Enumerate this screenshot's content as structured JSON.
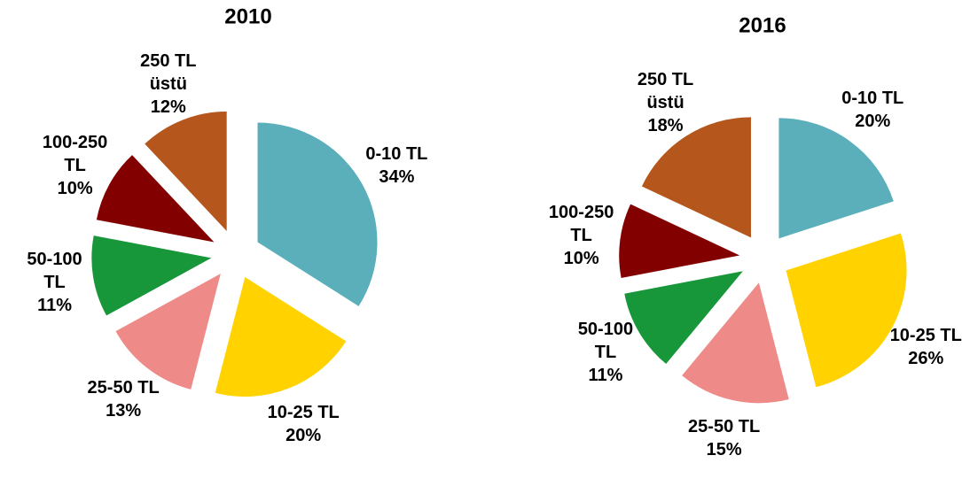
{
  "chart_data": [
    {
      "type": "pie",
      "title": "2010",
      "categories": [
        "0-10 TL",
        "10-25 TL",
        "25-50 TL",
        "50-100 TL",
        "100-250 TL",
        "250 TL üstü"
      ],
      "values": [
        34,
        20,
        13,
        11,
        10,
        12
      ],
      "value_labels": [
        "34%",
        "20%",
        "13%",
        "11%",
        "10%",
        "12%"
      ],
      "colors": [
        "#5aafba",
        "#ffd200",
        "#ee8a88",
        "#17963a",
        "#820000",
        "#b5561c"
      ]
    },
    {
      "type": "pie",
      "title": "2016",
      "categories": [
        "0-10 TL",
        "10-25 TL",
        "25-50 TL",
        "50-100 TL",
        "100-250 TL",
        "250 TL üstü"
      ],
      "values": [
        20,
        26,
        15,
        11,
        10,
        18
      ],
      "value_labels": [
        "20%",
        "26%",
        "15%",
        "11%",
        "10%",
        "18%"
      ],
      "colors": [
        "#5aafba",
        "#ffd200",
        "#ee8a88",
        "#17963a",
        "#820000",
        "#b5561c"
      ]
    }
  ]
}
